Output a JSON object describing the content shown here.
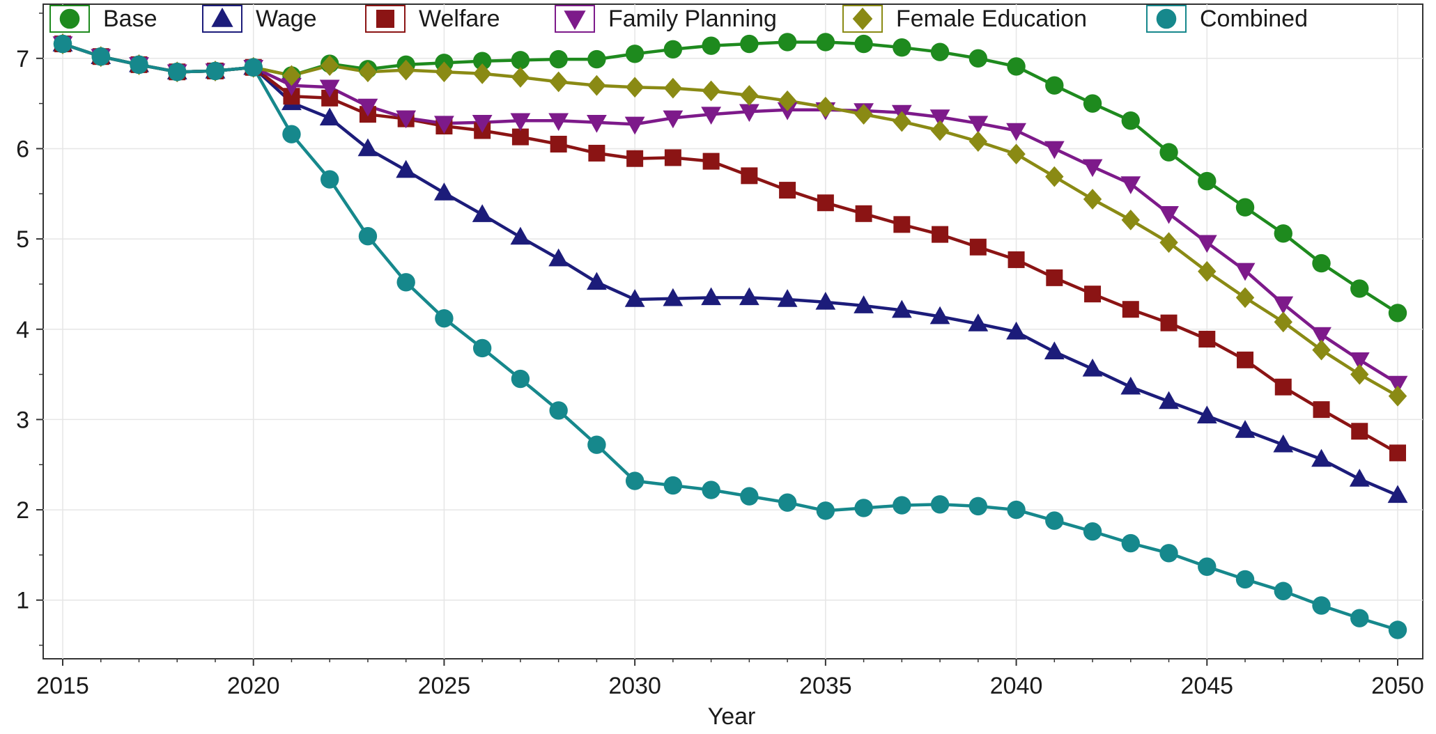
{
  "chart_data": {
    "type": "line",
    "xlabel": "Year",
    "ylabel": "",
    "xlim": [
      2015,
      2050
    ],
    "ylim": [
      0.35,
      7.6
    ],
    "x_ticks": [
      2015,
      2020,
      2025,
      2030,
      2035,
      2040,
      2045,
      2050
    ],
    "y_ticks": [
      1,
      2,
      3,
      4,
      5,
      6,
      7
    ],
    "grid": true,
    "legend_position": "top",
    "x": [
      2015,
      2016,
      2017,
      2018,
      2019,
      2020,
      2021,
      2022,
      2023,
      2024,
      2025,
      2026,
      2027,
      2028,
      2029,
      2030,
      2031,
      2032,
      2033,
      2034,
      2035,
      2036,
      2037,
      2038,
      2039,
      2040,
      2041,
      2042,
      2043,
      2044,
      2045,
      2046,
      2047,
      2048,
      2049,
      2050
    ],
    "series": [
      {
        "name": "Base",
        "color": "#1e8a1e",
        "marker": "circle",
        "values": [
          7.16,
          7.02,
          6.93,
          6.85,
          6.86,
          6.9,
          6.81,
          6.94,
          6.88,
          6.93,
          6.95,
          6.97,
          6.98,
          6.99,
          6.99,
          7.05,
          7.1,
          7.14,
          7.16,
          7.18,
          7.18,
          7.16,
          7.12,
          7.07,
          7.0,
          6.91,
          6.7,
          6.5,
          6.31,
          5.96,
          5.64,
          5.35,
          5.06,
          4.73,
          4.45,
          4.18
        ]
      },
      {
        "name": "Wage",
        "color": "#1c1c7a",
        "marker": "triangle-up",
        "values": [
          7.16,
          7.02,
          6.93,
          6.85,
          6.86,
          6.9,
          6.51,
          6.34,
          6.0,
          5.76,
          5.51,
          5.27,
          5.02,
          4.78,
          4.52,
          4.33,
          4.34,
          4.35,
          4.35,
          4.33,
          4.3,
          4.26,
          4.21,
          4.14,
          4.06,
          3.97,
          3.75,
          3.56,
          3.36,
          3.2,
          3.04,
          2.88,
          2.72,
          2.56,
          2.34,
          2.16
        ]
      },
      {
        "name": "Welfare",
        "color": "#8b1414",
        "marker": "square",
        "values": [
          7.16,
          7.02,
          6.93,
          6.85,
          6.86,
          6.9,
          6.58,
          6.56,
          6.38,
          6.33,
          6.25,
          6.2,
          6.13,
          6.05,
          5.95,
          5.89,
          5.9,
          5.86,
          5.7,
          5.54,
          5.4,
          5.28,
          5.16,
          5.05,
          4.91,
          4.77,
          4.57,
          4.39,
          4.22,
          4.07,
          3.89,
          3.66,
          3.36,
          3.11,
          2.87,
          2.63
        ]
      },
      {
        "name": "Family Planning",
        "color": "#7d1a8a",
        "marker": "triangle-down",
        "values": [
          7.16,
          7.02,
          6.93,
          6.85,
          6.86,
          6.9,
          6.7,
          6.68,
          6.47,
          6.34,
          6.28,
          6.29,
          6.31,
          6.31,
          6.29,
          6.27,
          6.34,
          6.38,
          6.41,
          6.43,
          6.43,
          6.42,
          6.4,
          6.35,
          6.28,
          6.2,
          6.0,
          5.8,
          5.61,
          5.28,
          4.96,
          4.65,
          4.28,
          3.94,
          3.66,
          3.4
        ]
      },
      {
        "name": "Female Education",
        "color": "#8a8a14",
        "marker": "diamond",
        "values": [
          7.16,
          7.02,
          6.93,
          6.85,
          6.86,
          6.9,
          6.81,
          6.92,
          6.85,
          6.87,
          6.85,
          6.83,
          6.79,
          6.74,
          6.7,
          6.68,
          6.67,
          6.64,
          6.59,
          6.53,
          6.46,
          6.38,
          6.3,
          6.2,
          6.08,
          5.94,
          5.69,
          5.44,
          5.21,
          4.96,
          4.64,
          4.35,
          4.08,
          3.77,
          3.5,
          3.26
        ]
      },
      {
        "name": "Combined",
        "color": "#16888c",
        "marker": "circle",
        "values": [
          7.16,
          7.02,
          6.93,
          6.85,
          6.86,
          6.9,
          6.16,
          5.66,
          5.03,
          4.52,
          4.12,
          3.79,
          3.45,
          3.1,
          2.72,
          2.32,
          2.27,
          2.22,
          2.15,
          2.08,
          1.99,
          2.02,
          2.05,
          2.06,
          2.04,
          2.0,
          1.88,
          1.76,
          1.63,
          1.52,
          1.37,
          1.23,
          1.1,
          0.94,
          0.8,
          0.67
        ]
      }
    ]
  }
}
